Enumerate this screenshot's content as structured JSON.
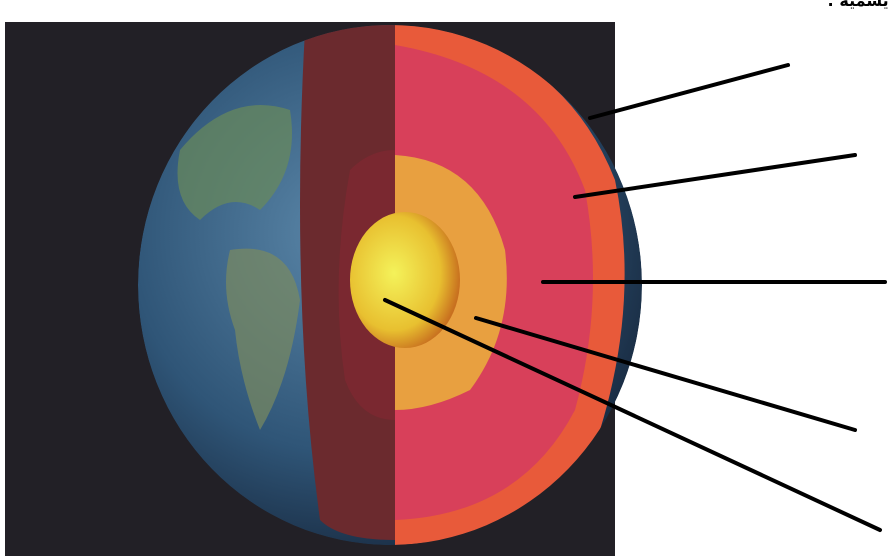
{
  "header": {
    "text": "يسمية :"
  }
}
